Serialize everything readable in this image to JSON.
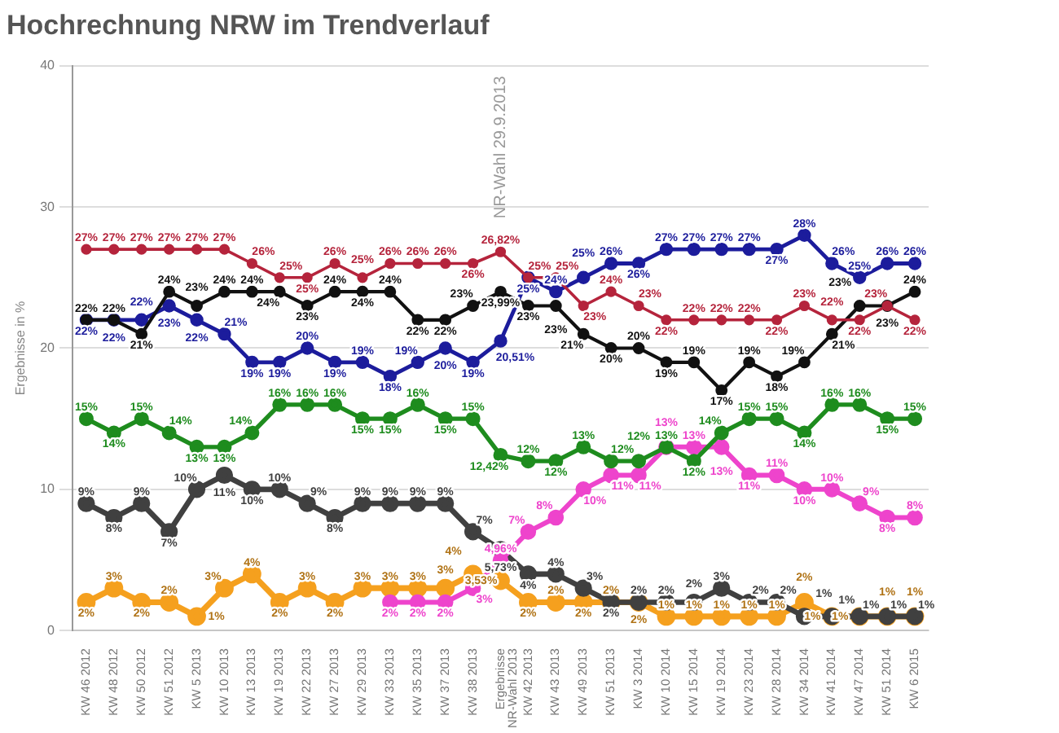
{
  "chart_data": {
    "type": "line",
    "title": "Hochrechnung NRW im Trendverlauf",
    "ylabel": "Ergebnisse in %",
    "categories": [
      "KW 46 2012",
      "KW 48 2012",
      "KW 50 2012",
      "KW 51 2012",
      "KW 5 2013",
      "KW 10 2013",
      "KW 13 2013",
      "KW 19 2013",
      "KW 22 2013",
      "KW 27 2013",
      "KW 29 2013",
      "KW 33 2013",
      "KW 35 2013",
      "KW 37 2013",
      "KW 38 2013",
      "Ergebnisse NR-Wahl 2013",
      "KW 42 2013",
      "KW 43 2013",
      "KW 49 2013",
      "KW 51 2013",
      "KW 3 2014",
      "KW 10 2014",
      "KW 15 2014",
      "KW 19 2014",
      "KW 23 2014",
      "KW 28 2014",
      "KW 34 2014",
      "KW 41 2014",
      "KW 47 2014",
      "KW 51 2014",
      "KW 6 2015"
    ],
    "series": [
      {
        "color": "#b5243c",
        "values": [
          27,
          27,
          27,
          27,
          27,
          27,
          26,
          25,
          25,
          26,
          25,
          26,
          26,
          26,
          26,
          26.82,
          25,
          25,
          23,
          24,
          23,
          22,
          22,
          22,
          22,
          22,
          23,
          22,
          22,
          23,
          22
        ],
        "value_labels": [
          "27%",
          "27%",
          "27%",
          "27%",
          "27%",
          "27%",
          "26%",
          "25%",
          "25%",
          "26%",
          "25%",
          "26%",
          "26%",
          "26%",
          "26%",
          "26,82%",
          "25%",
          "25%",
          "23%",
          "24%",
          "23%",
          "22%",
          "22%",
          "22%",
          "22%",
          "22%",
          "23%",
          "22%",
          "22%",
          "23%",
          "22%"
        ]
      },
      {
        "color": "#111111",
        "values": [
          22,
          22,
          21,
          24,
          23,
          24,
          24,
          24,
          23,
          24,
          24,
          24,
          22,
          22,
          23,
          23.99,
          23,
          23,
          21,
          20,
          20,
          19,
          19,
          17,
          19,
          18,
          19,
          21,
          23,
          23,
          24
        ],
        "value_labels": [
          "22%",
          "22%",
          "21%",
          "24%",
          "23%",
          "24%",
          "24%",
          "24%",
          "23%",
          "24%",
          "24%",
          "24%",
          "22%",
          "22%",
          "23%",
          "23,99%",
          "23%",
          "23%",
          "21%",
          "20%",
          "20%",
          "19%",
          "19%",
          "17%",
          "19%",
          "18%",
          "19%",
          "21%",
          "23%",
          "23%",
          "24%"
        ]
      },
      {
        "color": "#1c1c9c",
        "values": [
          22,
          22,
          22,
          23,
          22,
          21,
          19,
          19,
          20,
          19,
          19,
          18,
          19,
          20,
          19,
          20.51,
          25,
          24,
          25,
          26,
          26,
          27,
          27,
          27,
          27,
          27,
          28,
          26,
          25,
          26,
          26
        ],
        "value_labels": [
          "22%",
          "22%",
          "22%",
          "23%",
          "22%",
          "21%",
          "19%",
          "19%",
          "20%",
          "19%",
          "19%",
          "18%",
          "19%",
          "20%",
          "19%",
          "20,51%",
          "25%",
          "24%",
          "25%",
          "26%",
          "26%",
          "27%",
          "27%",
          "27%",
          "27%",
          "27%",
          "28%",
          "26%",
          "25%",
          "26%",
          "26%"
        ]
      },
      {
        "color": "#1e8c1e",
        "values": [
          15,
          14,
          15,
          14,
          13,
          13,
          14,
          16,
          16,
          16,
          15,
          15,
          16,
          15,
          15,
          12.42,
          12,
          12,
          13,
          12,
          12,
          13,
          12,
          14,
          15,
          15,
          14,
          16,
          16,
          15,
          15
        ],
        "value_labels": [
          "15%",
          "14%",
          "15%",
          "14%",
          "13%",
          "13%",
          "14%",
          "16%",
          "16%",
          "16%",
          "15%",
          "15%",
          "16%",
          "15%",
          "15%",
          "12,42%",
          "12%",
          "12%",
          "13%",
          "12%",
          "12%",
          "13%",
          "12%",
          "14%",
          "15%",
          "15%",
          "14%",
          "16%",
          "16%",
          "15%",
          "15%"
        ]
      },
      {
        "color": "#ee44cc",
        "values": [
          null,
          null,
          null,
          null,
          null,
          null,
          null,
          null,
          null,
          null,
          null,
          2,
          2,
          2,
          3,
          4.96,
          7,
          8,
          10,
          11,
          11,
          13,
          13,
          13,
          11,
          11,
          10,
          10,
          9,
          8,
          8
        ],
        "value_labels": [
          null,
          null,
          null,
          null,
          null,
          null,
          null,
          null,
          null,
          null,
          null,
          "2%",
          "2%",
          "2%",
          "3%",
          "4,96%",
          "7%",
          "8%",
          "10%",
          "11%",
          "11%",
          "13%",
          "13%",
          "13%",
          "11%",
          "11%",
          "10%",
          "10%",
          "9%",
          "8%",
          "8%"
        ]
      },
      {
        "color": "#404040",
        "values": [
          9,
          8,
          9,
          7,
          10,
          11,
          10,
          10,
          9,
          8,
          9,
          9,
          9,
          9,
          7,
          5.73,
          4,
          4,
          3,
          2,
          2,
          2,
          2,
          3,
          2,
          2,
          1,
          1,
          1,
          1,
          1
        ],
        "value_labels": [
          "9%",
          "8%",
          "9%",
          "7%",
          "10%",
          "11%",
          "10%",
          "10%",
          "9%",
          "8%",
          "9%",
          "9%",
          "9%",
          "9%",
          "7%",
          "5,73%",
          "4%",
          "4%",
          "3%",
          "2%",
          "2%",
          "2%",
          "2%",
          "3%",
          "2%",
          "2%",
          "1%",
          "1%",
          "1%",
          "1%",
          "1%"
        ]
      },
      {
        "color": "#f5a01e",
        "values": [
          2,
          3,
          2,
          2,
          1,
          3,
          4,
          2,
          3,
          2,
          3,
          3,
          3,
          3,
          4,
          3.53,
          2,
          2,
          2,
          2,
          2,
          1,
          1,
          1,
          1,
          1,
          2,
          1,
          1,
          1,
          1
        ],
        "value_labels": [
          "2%",
          "3%",
          "2%",
          "2%",
          "1%",
          "3%",
          "4%",
          "2%",
          "3%",
          "2%",
          "3%",
          "3%",
          "3%",
          "3%",
          "4%",
          "3,53%",
          "2%",
          "2%",
          "2%",
          "2%",
          "2%",
          "1%",
          "1%",
          "1%",
          "1%",
          "1%",
          "2%",
          "1%",
          "1%",
          "1%",
          "1%"
        ]
      }
    ],
    "ylim": [
      0,
      40
    ],
    "yticks": [
      0,
      10,
      20,
      30,
      40
    ],
    "grid": "y",
    "legend": false,
    "marker": "circle",
    "line_style": "solid",
    "annotations": [
      "NR-Wahl 29.9.2013"
    ]
  }
}
